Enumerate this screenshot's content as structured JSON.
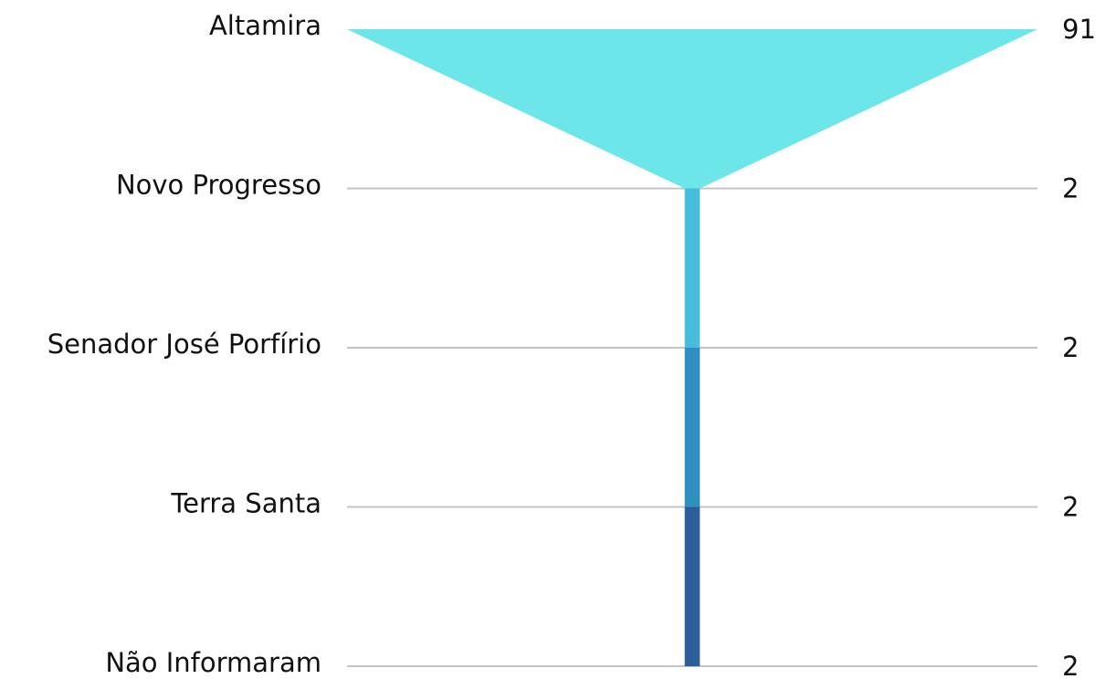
{
  "chart_data": {
    "type": "funnel",
    "categories": [
      "Altamira",
      "Novo Progresso",
      "Senador José Porfírio",
      "Terra Santa",
      "Não Informaram"
    ],
    "values": [
      91,
      2,
      2,
      2,
      2
    ],
    "colors": [
      "#6ce6e9",
      "#47bcdb",
      "#2f8fbe",
      "#2e5e9a"
    ]
  }
}
